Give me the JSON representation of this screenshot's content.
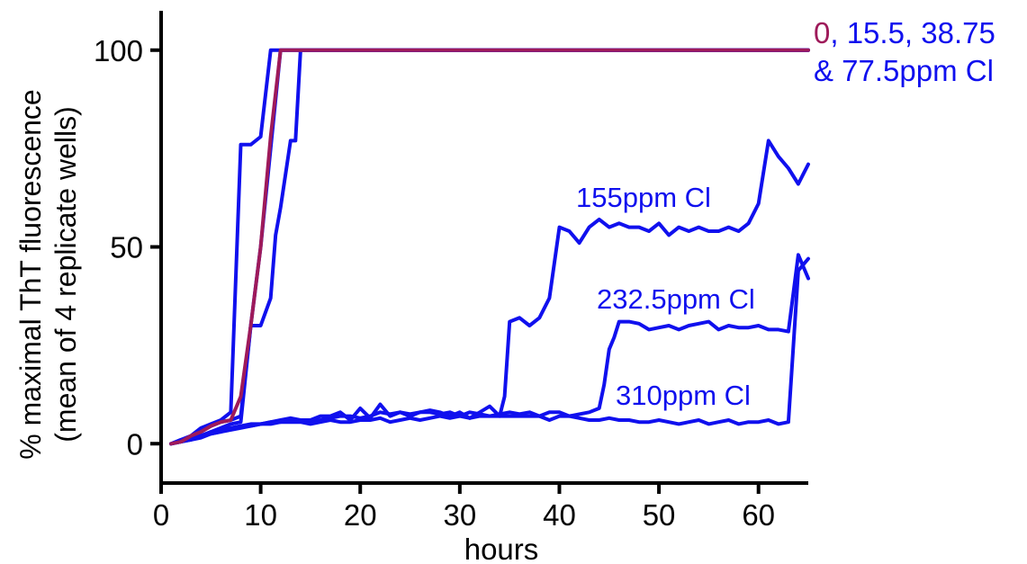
{
  "chart_data": {
    "type": "line",
    "xlabel": "hours",
    "ylabel_line1": "% maximal ThT fluorescence",
    "ylabel_line2": "(mean of 4 replicate wells)",
    "xlim": [
      0,
      65
    ],
    "ylim": [
      -10,
      110
    ],
    "x_ticks": [
      0,
      10,
      20,
      30,
      40,
      50,
      60
    ],
    "y_ticks": [
      0,
      50,
      100
    ],
    "grid": false,
    "colors": {
      "blue": "#1010ee",
      "maroon": "#9e1a5a",
      "axis": "#000000"
    },
    "annotations": {
      "top_zero": "0",
      "top_comma": ",",
      "top_rest": " 15.5, 38.75",
      "top_line2": "& 77.5ppm Cl",
      "label_155": "155ppm Cl",
      "label_232": "232.5ppm Cl",
      "label_310": "310ppm Cl"
    },
    "series": [
      {
        "color": "maroon",
        "x": [
          1,
          2,
          3,
          4,
          5,
          6,
          7,
          8,
          9,
          10,
          11,
          12,
          65
        ],
        "y": [
          0,
          0.5,
          2,
          3,
          4.5,
          5.5,
          6,
          12,
          30,
          50,
          78,
          100,
          100
        ]
      },
      {
        "color": "blue",
        "x": [
          1,
          2,
          3,
          4,
          5,
          6,
          7,
          8,
          9,
          10,
          11,
          12,
          65
        ],
        "y": [
          0,
          1,
          2,
          4,
          5,
          6,
          8,
          76,
          76,
          78,
          100,
          100,
          100
        ]
      },
      {
        "color": "blue",
        "x": [
          1,
          2,
          3,
          4,
          5,
          6,
          7,
          8,
          9,
          10,
          11,
          12,
          13,
          65
        ],
        "y": [
          0,
          0.5,
          1.5,
          3,
          4.5,
          5.5,
          6,
          7,
          30,
          50,
          75,
          100,
          100,
          100
        ]
      },
      {
        "color": "blue",
        "x": [
          1,
          2,
          3,
          4,
          5,
          6,
          7,
          8,
          9,
          10,
          11,
          11.5,
          12,
          13,
          13.5,
          14,
          14.5,
          65
        ],
        "y": [
          0,
          0.5,
          1,
          2,
          3,
          4,
          5,
          5.5,
          30,
          30,
          37,
          53,
          60,
          77,
          77,
          100,
          100,
          100
        ]
      },
      {
        "color": "blue",
        "x": [
          1,
          2,
          3,
          4,
          5,
          6,
          7,
          8,
          9,
          10,
          11,
          12,
          13,
          14,
          15,
          16,
          17,
          18,
          19,
          20,
          21,
          22,
          23,
          24,
          25,
          26,
          27,
          28,
          29,
          30,
          31,
          32,
          33,
          34,
          34.5,
          35,
          36,
          37,
          38,
          39,
          40,
          41,
          42,
          43,
          44,
          45,
          46,
          47,
          48,
          49,
          50,
          51,
          52,
          53,
          54,
          55,
          56,
          57,
          58,
          59,
          60,
          61,
          62,
          63,
          64,
          65
        ],
        "y": [
          0,
          0.5,
          1,
          1.5,
          2.5,
          3,
          3.5,
          4,
          4.5,
          5,
          5.5,
          6,
          6.5,
          6,
          6,
          7,
          7,
          8,
          6,
          9,
          6.5,
          10,
          7,
          8,
          7.5,
          8,
          8.5,
          8,
          7,
          8,
          6.5,
          8,
          9.5,
          7,
          12,
          31,
          32,
          30,
          32,
          37,
          55,
          54,
          51,
          55,
          57,
          55,
          56,
          55,
          55,
          54,
          56,
          53,
          55,
          54,
          55,
          54,
          54,
          55,
          54,
          56,
          61,
          77,
          73,
          70,
          66,
          71
        ]
      },
      {
        "color": "blue",
        "x": [
          1,
          2,
          3,
          4,
          5,
          6,
          7,
          8,
          9,
          10,
          11,
          12,
          13,
          14,
          15,
          16,
          17,
          18,
          19,
          20,
          21,
          22,
          23,
          24,
          25,
          26,
          27,
          28,
          29,
          30,
          31,
          32,
          33,
          34,
          35,
          36,
          37,
          38,
          39,
          40,
          41,
          42,
          43,
          44,
          44.5,
          45,
          45.5,
          46,
          47,
          48,
          49,
          50,
          51,
          52,
          53,
          54,
          55,
          56,
          57,
          58,
          59,
          60,
          61,
          62,
          63,
          64,
          65
        ],
        "y": [
          0,
          1,
          1,
          2,
          2.5,
          3,
          4,
          4.5,
          5,
          5,
          5.5,
          5.5,
          6,
          6,
          5.5,
          6,
          6.5,
          7,
          7,
          6.5,
          7,
          8,
          7.5,
          8,
          7,
          8,
          8,
          7.5,
          8,
          7,
          8,
          7.5,
          7,
          7.5,
          8,
          7.5,
          8,
          7,
          8,
          8,
          7,
          7.5,
          8,
          9,
          15,
          24,
          27,
          31,
          31,
          30.5,
          29,
          29.5,
          30,
          29,
          30,
          30.5,
          31,
          29,
          30,
          29.5,
          29.5,
          30,
          29,
          29,
          28.5,
          48,
          42
        ]
      },
      {
        "color": "blue",
        "x": [
          1,
          2,
          3,
          4,
          5,
          6,
          7,
          8,
          9,
          10,
          11,
          12,
          13,
          14,
          15,
          16,
          17,
          18,
          19,
          20,
          21,
          22,
          23,
          24,
          25,
          26,
          27,
          28,
          29,
          30,
          31,
          32,
          33,
          34,
          35,
          36,
          37,
          38,
          39,
          40,
          41,
          42,
          43,
          44,
          45,
          46,
          47,
          48,
          49,
          50,
          51,
          52,
          53,
          54,
          55,
          56,
          57,
          58,
          59,
          60,
          61,
          62,
          63,
          64,
          65
        ],
        "y": [
          0,
          0.5,
          1.5,
          2,
          3,
          3.5,
          4,
          4.5,
          4.5,
          5,
          5,
          5.5,
          5.5,
          5.5,
          5,
          5.5,
          6,
          5.5,
          5.5,
          6,
          6,
          6.5,
          5.5,
          6,
          6.5,
          6,
          6.5,
          7,
          6.5,
          7,
          6.5,
          7,
          7,
          7,
          7,
          7,
          7,
          7,
          6,
          7,
          7,
          6.5,
          6,
          6,
          6.5,
          6,
          6,
          5.5,
          5.5,
          6,
          5.5,
          5,
          5.5,
          6,
          5,
          5.5,
          6,
          5,
          5.5,
          5.5,
          6,
          5,
          5.5,
          44,
          47
        ]
      }
    ]
  }
}
